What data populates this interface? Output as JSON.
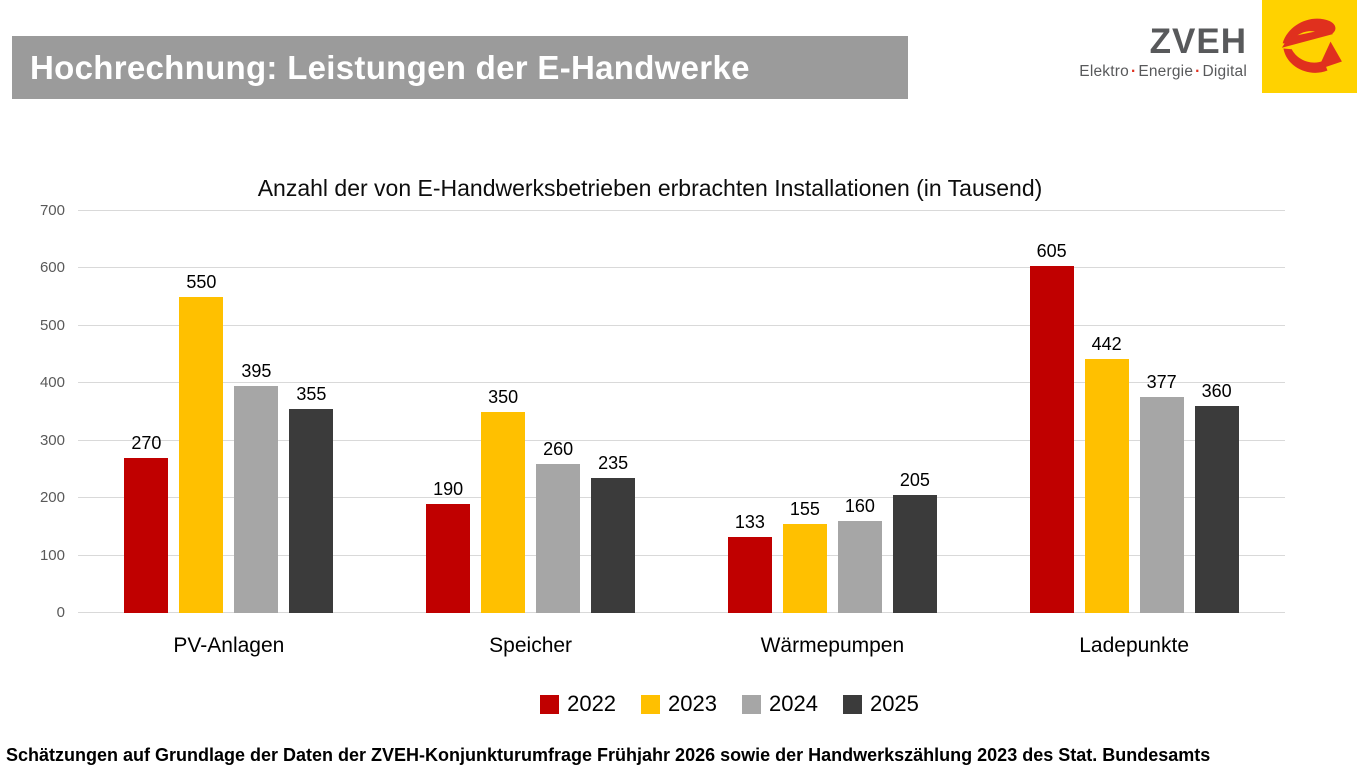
{
  "header": {
    "title": "Hochrechnung: Leistungen der E-Handwerke",
    "logo": {
      "wordmark": "ZVEH",
      "tagline_parts": [
        "Elektro",
        "Energie",
        "Digital"
      ],
      "tagline_separator": "·",
      "colors": {
        "wordmark_gray": "#58595B",
        "mark_red": "#E0301E",
        "square_yellow": "#FFD200"
      }
    }
  },
  "chart_data": {
    "type": "bar",
    "title": "Anzahl der von E-Handwerksbetrieben erbrachten Installationen (in Tausend)",
    "categories": [
      "PV-Anlagen",
      "Speicher",
      "Wärmepumpen",
      "Ladepunkte"
    ],
    "series": [
      {
        "name": "2022",
        "color": "#C00000",
        "values": [
          270,
          190,
          133,
          605
        ]
      },
      {
        "name": "2023",
        "color": "#FFC000",
        "values": [
          550,
          350,
          155,
          442
        ]
      },
      {
        "name": "2024",
        "color": "#A6A6A6",
        "values": [
          395,
          260,
          160,
          377
        ]
      },
      {
        "name": "2025",
        "color": "#3B3B3B",
        "values": [
          355,
          235,
          205,
          360
        ]
      }
    ],
    "xlabel": "",
    "ylabel": "",
    "ylim": [
      0,
      700
    ],
    "ytick_step": 100,
    "ytick_labels": [
      "0",
      "100",
      "200",
      "300",
      "400",
      "500",
      "600",
      "700"
    ],
    "grid": true,
    "gridline_color": "#D9D9D9",
    "legend_position": "bottom"
  },
  "footer": {
    "source_note": "Schätzungen auf Grundlage der Daten der ZVEH-Konjunkturumfrage Frühjahr 2026 sowie der Handwerkszählung 2023 des Stat. Bundesamts"
  }
}
